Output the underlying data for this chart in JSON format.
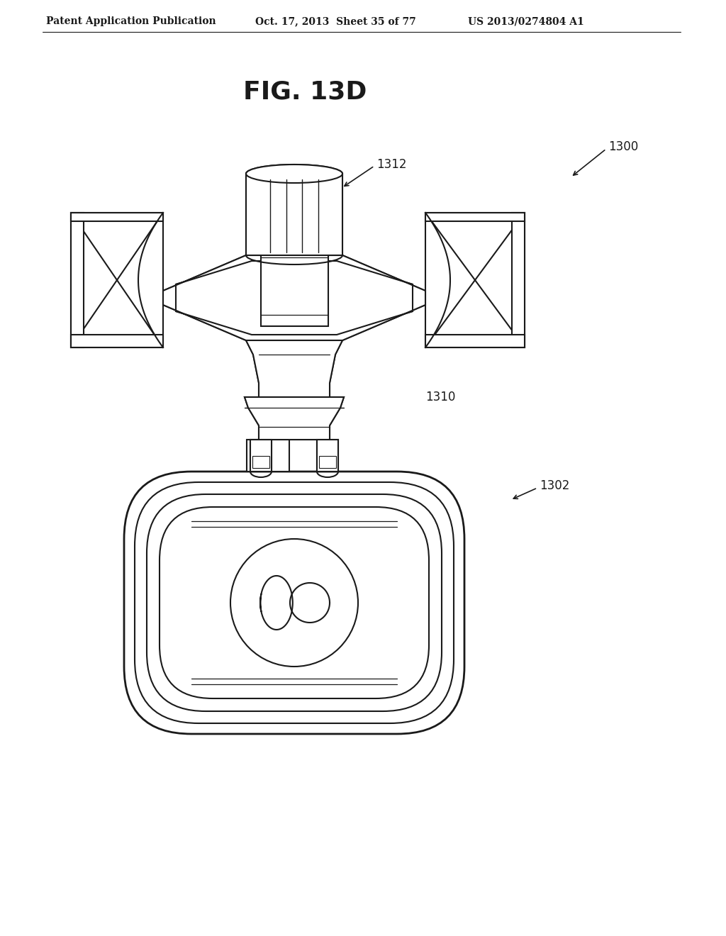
{
  "bg_color": "#ffffff",
  "header_left": "Patent Application Publication",
  "header_mid": "Oct. 17, 2013  Sheet 35 of 77",
  "header_right": "US 2013/0274804 A1",
  "fig_title": "FIG. 13D",
  "ref_1300": "1300",
  "ref_1302": "1302",
  "ref_1310": "1310",
  "ref_1312": "1312",
  "line_color": "#1a1a1a",
  "line_width": 1.5,
  "title_fontsize": 26,
  "header_fontsize": 10,
  "ref_fontsize": 12
}
